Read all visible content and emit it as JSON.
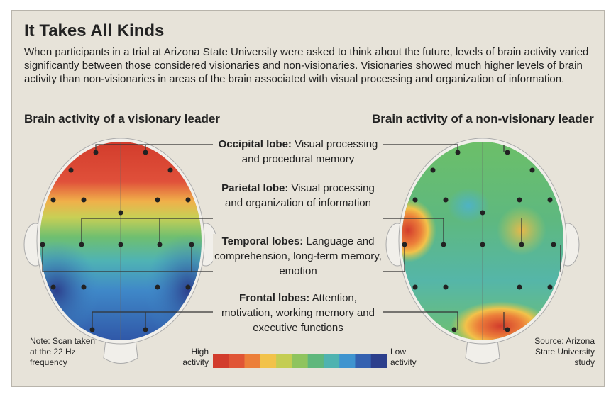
{
  "title": "It Takes All Kinds",
  "intro": "When participants in a trial at Arizona State University were asked to think about the future, levels of brain activity varied significantly between those considered visionaries and non-visionaries. Visionaries showed much higher levels of brain activity than non-visionaries in areas of the brain associated with visual processing and organization of information.",
  "panels": [
    {
      "heading": "Brain activity of a visionary leader"
    },
    {
      "heading": "Brain activity of a non-visionary leader"
    }
  ],
  "lobes": [
    {
      "name": "Occipital lobe:",
      "text": "Visual processing and procedural memory"
    },
    {
      "name": "Parietal lobe:",
      "text": "Visual processing and organization of information"
    },
    {
      "name": "Temporal lobes:",
      "text": "Language and comprehension, long-term memory, emotion"
    },
    {
      "name": "Frontal lobes:",
      "text": "Attention, motivation, working memory and executive functions"
    }
  ],
  "legend": {
    "high": "High activity",
    "low": "Low activity",
    "colors": [
      "#d23c2c",
      "#e05536",
      "#ec7f3a",
      "#f2c24a",
      "#c4cd52",
      "#8fc45e",
      "#5fb77c",
      "#4fb3b0",
      "#3f94cf",
      "#3461b0",
      "#2c3f8c"
    ]
  },
  "note": "Note: Scan taken at the 22 Hz frequency",
  "source": "Source: Arizona State University study"
}
